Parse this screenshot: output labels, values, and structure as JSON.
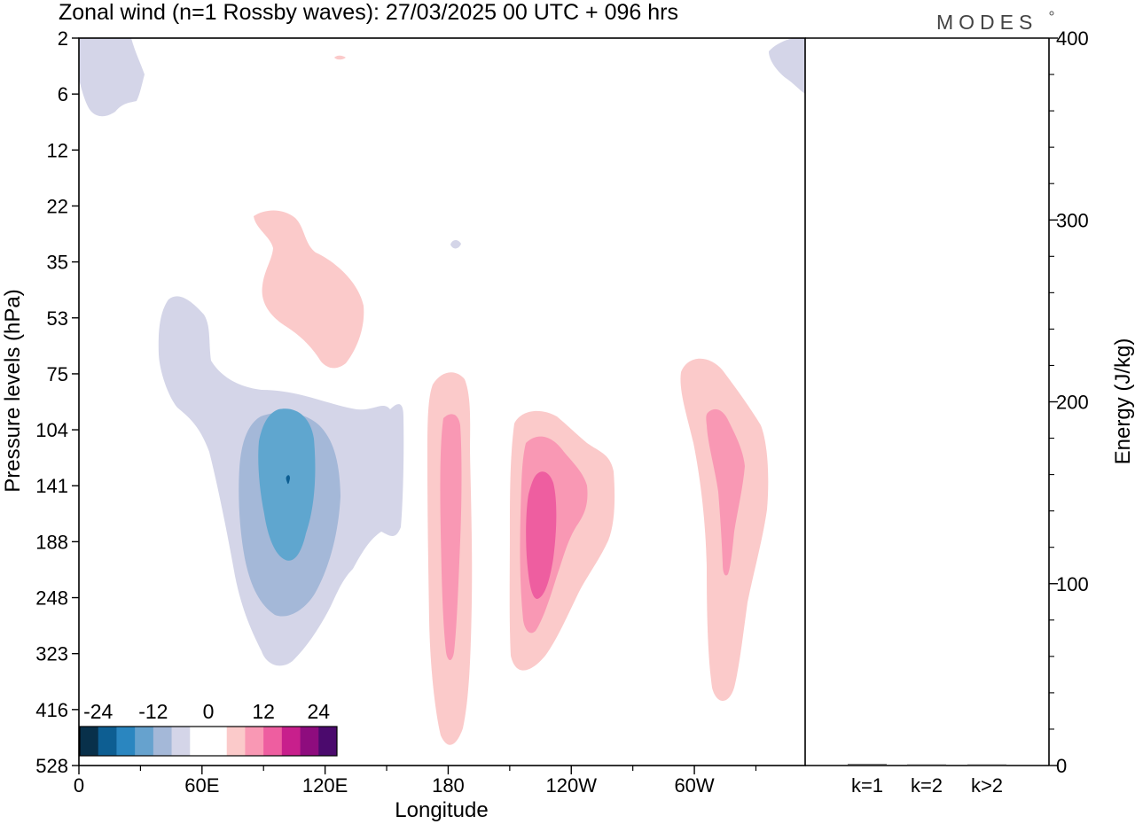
{
  "header": {
    "title": "Zonal wind (n=1 Rossby waves):  27/03/2025  00 UTC  + 096 hrs",
    "brand": "MODES"
  },
  "chart_data": [
    {
      "type": "contour",
      "xlabel": "Longitude",
      "ylabel": "Pressure levels (hPa)",
      "x_ticks": [
        "0",
        "60E",
        "120E",
        "180",
        "120W",
        "60W"
      ],
      "y_ticks": [
        "2",
        "6",
        "12",
        "22",
        "35",
        "53",
        "75",
        "104",
        "141",
        "188",
        "248",
        "323",
        "416",
        "528"
      ],
      "colorbar": {
        "labels": [
          "-24",
          "-12",
          "0",
          "12",
          "24"
        ],
        "levels": [
          -30,
          -24,
          -18,
          -12,
          -6,
          0,
          6,
          12,
          18,
          24,
          30
        ],
        "colors": [
          "#08304a",
          "#0d5e92",
          "#2a86c0",
          "#66a2ce",
          "#a4b8d8",
          "#d4d5e8",
          "#ffffff",
          "#fbcaca",
          "#f998b4",
          "#ee5ea0",
          "#c81f8c",
          "#8e0c7e",
          "#4b0a6d"
        ]
      },
      "features": [
        {
          "sign": "negative",
          "peak_level": -24,
          "longitude": "≈100E",
          "pressure_hPa": 141
        },
        {
          "sign": "positive",
          "peak_level": 12,
          "longitude": "≈180",
          "pressure_hPa": 188
        },
        {
          "sign": "positive",
          "peak_level": 18,
          "longitude": "≈130W",
          "pressure_hPa": 188
        },
        {
          "sign": "positive",
          "peak_level": 12,
          "longitude": "≈45W",
          "pressure_hPa": 141
        },
        {
          "sign": "positive",
          "peak_level": 6,
          "longitude": "≈90E",
          "pressure_hPa": 35
        }
      ]
    },
    {
      "type": "bar",
      "categories": [
        "k=1",
        "k=2",
        "k>2"
      ],
      "values": [
        0.3,
        0.1,
        0.1
      ],
      "ylabel": "Energy (J/kg)",
      "ylim": [
        0,
        400
      ],
      "y_ticks": [
        "0",
        "100",
        "200",
        "300",
        "400"
      ]
    }
  ]
}
